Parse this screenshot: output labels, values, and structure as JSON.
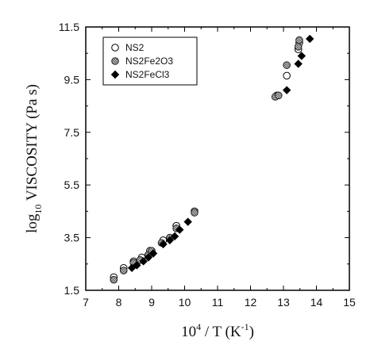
{
  "chart_data": {
    "type": "scatter",
    "title": "",
    "xlabel": {
      "base": "10",
      "exp": "4",
      "rest": " / T (K",
      "rest_exp": "-1",
      "close": ")"
    },
    "ylabel": {
      "prefix": "log",
      "sub": "10",
      "rest": " VISCOSITY (Pa s)"
    },
    "xlim": [
      7,
      15
    ],
    "ylim": [
      1.5,
      11.5
    ],
    "x_ticks": [
      7,
      8,
      9,
      10,
      11,
      12,
      13,
      14,
      15
    ],
    "x_tick_labels": [
      "7",
      "8",
      "9",
      "10",
      "11",
      "12",
      "13",
      "14",
      "15"
    ],
    "y_ticks": [
      1.5,
      3.5,
      5.5,
      7.5,
      9.5,
      11.5
    ],
    "y_tick_labels": [
      "1.5",
      "3.5",
      "5.5",
      "7.5",
      "9.5",
      "11.5"
    ],
    "grid": false,
    "legend_position": "top-left",
    "series": [
      {
        "name": "NS2",
        "marker": "open-circle",
        "color": "#000000",
        "points": [
          [
            7.85,
            2.0
          ],
          [
            8.15,
            2.35
          ],
          [
            8.45,
            2.6
          ],
          [
            8.7,
            2.75
          ],
          [
            8.95,
            3.0
          ],
          [
            9.35,
            3.4
          ],
          [
            9.75,
            3.95
          ],
          [
            10.3,
            4.5
          ],
          [
            12.8,
            8.9
          ],
          [
            13.1,
            9.65
          ],
          [
            13.45,
            10.65
          ],
          [
            13.48,
            10.9
          ]
        ]
      },
      {
        "name": "NS2Fe2O3",
        "marker": "hatched-circle",
        "color": "#777777",
        "points": [
          [
            7.85,
            1.9
          ],
          [
            8.15,
            2.25
          ],
          [
            8.45,
            2.55
          ],
          [
            8.65,
            2.65
          ],
          [
            8.9,
            2.85
          ],
          [
            9.0,
            3.0
          ],
          [
            9.3,
            3.3
          ],
          [
            9.55,
            3.5
          ],
          [
            9.75,
            3.85
          ],
          [
            10.3,
            4.45
          ],
          [
            12.75,
            8.85
          ],
          [
            12.85,
            8.9
          ],
          [
            13.1,
            10.05
          ],
          [
            13.45,
            10.75
          ],
          [
            13.48,
            11.0
          ]
        ]
      },
      {
        "name": "NS2FeCl3",
        "marker": "filled-diamond",
        "color": "#000000",
        "points": [
          [
            8.4,
            2.35
          ],
          [
            8.55,
            2.45
          ],
          [
            8.75,
            2.6
          ],
          [
            8.9,
            2.75
          ],
          [
            9.05,
            2.9
          ],
          [
            9.35,
            3.25
          ],
          [
            9.55,
            3.4
          ],
          [
            9.7,
            3.55
          ],
          [
            9.85,
            3.8
          ],
          [
            10.1,
            4.1
          ],
          [
            13.1,
            9.1
          ],
          [
            13.45,
            10.1
          ],
          [
            13.55,
            10.4
          ],
          [
            13.8,
            11.05
          ]
        ]
      }
    ]
  }
}
